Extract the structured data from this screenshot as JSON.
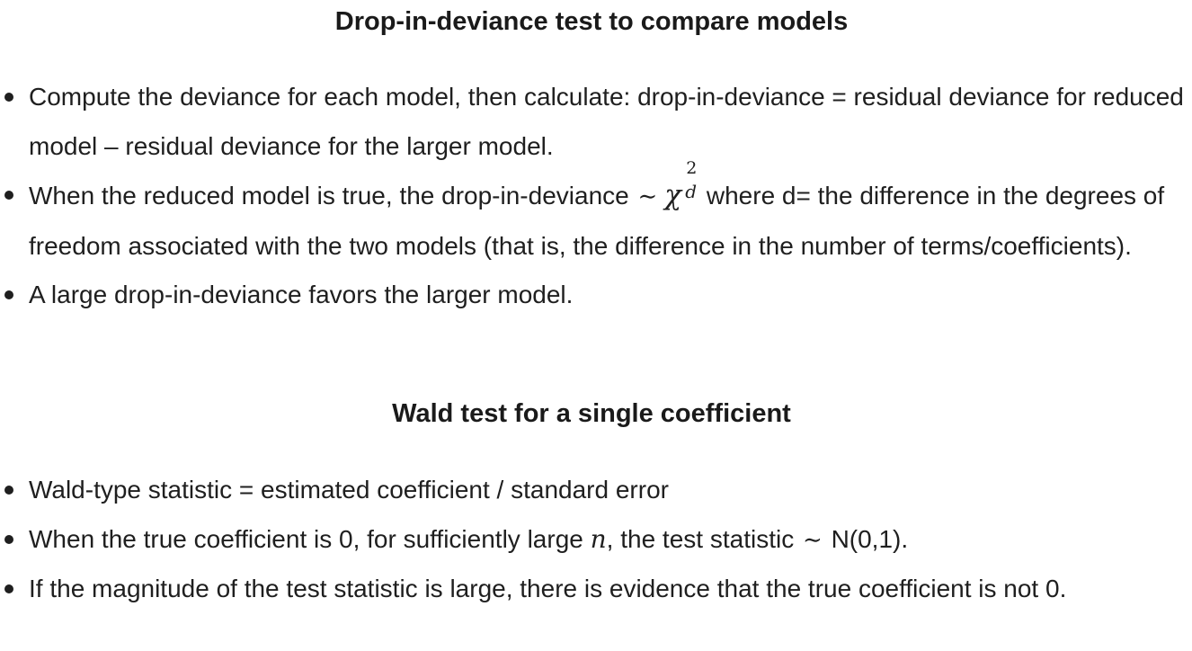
{
  "deviance_section": {
    "heading": "Drop-in-deviance test to compare models",
    "bullet1": "Compute the deviance for each model, then calculate: drop-in-deviance = residual deviance for reduced model – residual deviance for the larger model.",
    "bullet2_before": "When the reduced model is true, the drop-in-deviance",
    "bullet2_tilde": "∼",
    "bullet2_chi": "χ",
    "bullet2_chi_sup": "2",
    "bullet2_chi_sub": "d",
    "bullet2_after": "where d= the difference in the degrees of freedom associated with the two models (that is, the difference in the number of terms/coefficients).",
    "bullet3": "A large drop-in-deviance favors the larger model."
  },
  "wald_section": {
    "heading": "Wald test for a single coefficient",
    "bullet1": "Wald-type statistic = estimated coefficient / standard error",
    "bullet2_before": "When the true coefficient is 0, for sufficiently large",
    "bullet2_var": "n",
    "bullet2_middle": ", the test statistic",
    "bullet2_tilde": "∼",
    "bullet2_after": "N(0,1).",
    "bullet3": "If the magnitude of the test statistic is large, there is evidence that the true coefficient is not 0."
  }
}
